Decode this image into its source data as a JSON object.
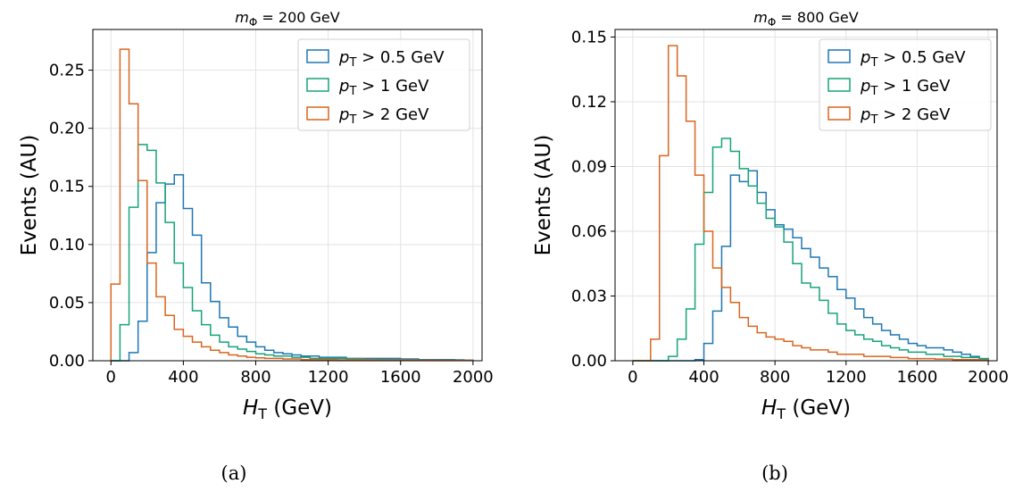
{
  "colors": {
    "pt05": "#1f77b4",
    "pt1": "#17a37a",
    "pt2": "#d9661f"
  },
  "chart_data": [
    {
      "type": "step-histogram",
      "title": {
        "prefix": "m",
        "sub": "Φ",
        "suffix": " = 200 GeV"
      },
      "xlabel": {
        "main": "H",
        "sub": "T",
        "rest": " (GeV)"
      },
      "ylabel": "Events (AU)",
      "xlim": [
        -100,
        2050
      ],
      "ylim": [
        0,
        0.285
      ],
      "xticks": [
        0,
        400,
        800,
        1200,
        1600,
        2000
      ],
      "yticks": [
        "0.00",
        "0.05",
        "0.10",
        "0.15",
        "0.20",
        "0.25"
      ],
      "grid": true,
      "legend_position": "top-right",
      "caption": "(a)",
      "bin_start": 0,
      "bin_width": 50,
      "series": [
        {
          "name": "p_T > 0.5 GeV",
          "label_main": "p",
          "label_sub": "T",
          "label_rest": " > 0.5 GeV",
          "color_key": "pt05",
          "values": [
            0,
            0,
            0.007,
            0.034,
            0.093,
            0.136,
            0.152,
            0.16,
            0.131,
            0.108,
            0.067,
            0.051,
            0.037,
            0.029,
            0.021,
            0.016,
            0.012,
            0.009,
            0.007,
            0.006,
            0.005,
            0.004,
            0.004,
            0.003,
            0.003,
            0.003,
            0.002,
            0.002,
            0.002,
            0.002,
            0.002,
            0.002,
            0.0015,
            0.0015,
            0.001,
            0.001,
            0.001,
            0.001,
            0.0008,
            0.0005
          ]
        },
        {
          "name": "p_T > 1 GeV",
          "label_main": "p",
          "label_sub": "T",
          "label_rest": " > 1 GeV",
          "color_key": "pt1",
          "values": [
            0,
            0.031,
            0.132,
            0.186,
            0.181,
            0.153,
            0.119,
            0.084,
            0.063,
            0.043,
            0.031,
            0.022,
            0.016,
            0.012,
            0.01,
            0.008,
            0.006,
            0.005,
            0.004,
            0.004,
            0.003,
            0.003,
            0.002,
            0.002,
            0.002,
            0.002,
            0.0015,
            0.0015,
            0.001,
            0.001,
            0.001,
            0.001,
            0.0008,
            0.0008,
            0.0005,
            0.0005,
            0.0005,
            0.0005,
            0.0003,
            0.0003
          ]
        },
        {
          "name": "p_T > 2 GeV",
          "label_main": "p",
          "label_sub": "T",
          "label_rest": " > 2 GeV",
          "color_key": "pt2",
          "values": [
            0.066,
            0.268,
            0.221,
            0.155,
            0.084,
            0.055,
            0.039,
            0.027,
            0.021,
            0.016,
            0.012,
            0.009,
            0.007,
            0.005,
            0.004,
            0.003,
            0.0025,
            0.002,
            0.002,
            0.0015,
            0.0015,
            0.001,
            0.001,
            0.001,
            0.001,
            0.0008,
            0.0008,
            0.0008,
            0.0008,
            0.0006,
            0.0006,
            0.0006,
            0.0006,
            0.0005,
            0.0005,
            0.0005,
            0.0004,
            0.0004,
            0.0004,
            0.0003
          ]
        }
      ]
    },
    {
      "type": "step-histogram",
      "title": {
        "prefix": "m",
        "sub": "Φ",
        "suffix": " = 800 GeV"
      },
      "xlabel": {
        "main": "H",
        "sub": "T",
        "rest": " (GeV)"
      },
      "ylabel": "Events (AU)",
      "xlim": [
        -100,
        2050
      ],
      "ylim": [
        0,
        0.1535
      ],
      "xticks": [
        0,
        400,
        800,
        1200,
        1600,
        2000
      ],
      "yticks": [
        "0.00",
        "0.03",
        "0.06",
        "0.09",
        "0.12",
        "0.15"
      ],
      "grid": true,
      "legend_position": "top-right",
      "caption": "(b)",
      "bin_start": 0,
      "bin_width": 50,
      "series": [
        {
          "name": "p_T > 0.5 GeV",
          "label_main": "p",
          "label_sub": "T",
          "label_rest": " > 0.5 GeV",
          "color_key": "pt05",
          "values": [
            0,
            0,
            0,
            0,
            0,
            0,
            0,
            0.0005,
            0.008,
            0.023,
            0.053,
            0.086,
            0.083,
            0.088,
            0.078,
            0.07,
            0.063,
            0.061,
            0.057,
            0.052,
            0.048,
            0.043,
            0.039,
            0.033,
            0.029,
            0.024,
            0.02,
            0.017,
            0.014,
            0.012,
            0.01,
            0.008,
            0.007,
            0.006,
            0.006,
            0.005,
            0.004,
            0.003,
            0.002,
            0.001
          ]
        },
        {
          "name": "p_T > 1 GeV",
          "label_main": "p",
          "label_sub": "T",
          "label_rest": " > 1 GeV",
          "color_key": "pt1",
          "values": [
            0,
            0,
            0,
            0,
            0.002,
            0.01,
            0.024,
            0.054,
            0.078,
            0.099,
            0.103,
            0.097,
            0.089,
            0.081,
            0.073,
            0.066,
            0.062,
            0.055,
            0.045,
            0.036,
            0.034,
            0.028,
            0.022,
            0.017,
            0.014,
            0.012,
            0.01,
            0.009,
            0.007,
            0.006,
            0.005,
            0.004,
            0.004,
            0.003,
            0.003,
            0.002,
            0.002,
            0.0015,
            0.0015,
            0.001
          ]
        },
        {
          "name": "p_T > 2 GeV",
          "label_main": "p",
          "label_sub": "T",
          "label_rest": " > 2 GeV",
          "color_key": "pt2",
          "values": [
            0,
            0,
            0.01,
            0.095,
            0.146,
            0.132,
            0.111,
            0.086,
            0.06,
            0.043,
            0.034,
            0.027,
            0.02,
            0.016,
            0.013,
            0.011,
            0.01,
            0.009,
            0.007,
            0.006,
            0.005,
            0.005,
            0.004,
            0.003,
            0.003,
            0.003,
            0.002,
            0.002,
            0.002,
            0.0015,
            0.0015,
            0.001,
            0.001,
            0.001,
            0.0008,
            0.0008,
            0.0005,
            0.0005,
            0.0005,
            0.0003
          ]
        }
      ]
    }
  ]
}
